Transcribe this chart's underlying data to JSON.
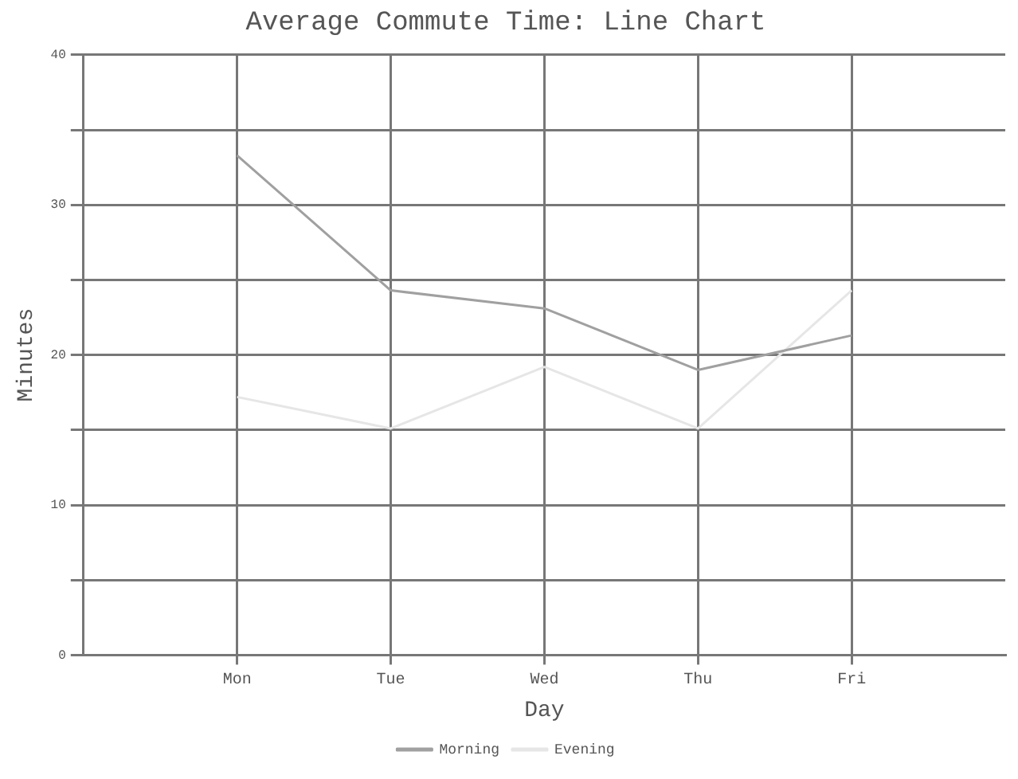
{
  "chart_data": {
    "type": "line",
    "title": "Average Commute Time: Line Chart",
    "xlabel": "Day",
    "ylabel": "Minutes",
    "categories": [
      "Mon",
      "Tue",
      "Wed",
      "Thu",
      "Fri"
    ],
    "series": [
      {
        "name": "Morning",
        "color": "#a0a0a0",
        "values": [
          33.3,
          24.3,
          23.1,
          19,
          21.3
        ]
      },
      {
        "name": "Evening",
        "color": "#e6e6e6",
        "values": [
          17.2,
          15.1,
          19.2,
          15.1,
          24.3
        ]
      }
    ],
    "ylim": [
      0,
      40
    ],
    "yticks": [
      0,
      {
        "value": 5,
        "label": null
      },
      10,
      {
        "value": 15,
        "label": null
      },
      20,
      {
        "value": 25,
        "label": null
      },
      30,
      {
        "value": 35,
        "label": null
      },
      40
    ],
    "grid": true,
    "legend": "bottom",
    "marker": "none",
    "line_style": "solid"
  }
}
